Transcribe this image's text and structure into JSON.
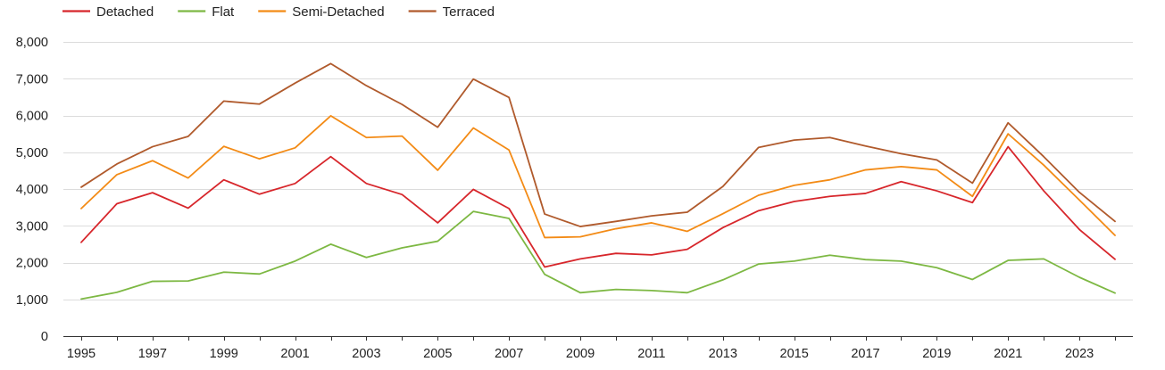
{
  "chart_data": {
    "type": "line",
    "title": "",
    "xlabel": "",
    "ylabel": "",
    "ylim": [
      0,
      8000
    ],
    "grid": true,
    "legend_position": "top-left",
    "x": [
      1995,
      1996,
      1997,
      1998,
      1999,
      2000,
      2001,
      2002,
      2003,
      2004,
      2005,
      2006,
      2007,
      2008,
      2009,
      2010,
      2011,
      2012,
      2013,
      2014,
      2015,
      2016,
      2017,
      2018,
      2019,
      2020,
      2021,
      2022,
      2023,
      2024
    ],
    "x_tick_labels": [
      "1995",
      "1997",
      "1999",
      "2001",
      "2003",
      "2005",
      "2007",
      "2009",
      "2011",
      "2013",
      "2015",
      "2017",
      "2019",
      "2021",
      "2023"
    ],
    "x_ticks": [
      1995,
      1997,
      1999,
      2001,
      2003,
      2005,
      2007,
      2009,
      2011,
      2013,
      2015,
      2017,
      2019,
      2021,
      2023
    ],
    "y_ticks": [
      0,
      1000,
      2000,
      3000,
      4000,
      5000,
      6000,
      7000,
      8000
    ],
    "y_tick_labels": [
      "0",
      "1,000",
      "2,000",
      "3,000",
      "4,000",
      "5,000",
      "6,000",
      "7,000",
      "8,000"
    ],
    "series": [
      {
        "name": "Detached",
        "color": "#d7262b",
        "values": [
          2550,
          3600,
          3900,
          3480,
          4250,
          3860,
          4150,
          4880,
          4150,
          3850,
          3080,
          3990,
          3470,
          1880,
          2100,
          2250,
          2210,
          2360,
          2950,
          3410,
          3660,
          3800,
          3880,
          4200,
          3950,
          3630,
          5150,
          3950,
          2900,
          2090
        ]
      },
      {
        "name": "Flat",
        "color": "#7db843",
        "values": [
          1010,
          1190,
          1490,
          1500,
          1740,
          1690,
          2040,
          2500,
          2140,
          2400,
          2580,
          3390,
          3200,
          1680,
          1180,
          1270,
          1240,
          1180,
          1530,
          1960,
          2040,
          2200,
          2080,
          2040,
          1860,
          1540,
          2060,
          2100,
          1600,
          1170
        ]
      },
      {
        "name": "Semi-Detached",
        "color": "#f38b16",
        "values": [
          3470,
          4390,
          4770,
          4300,
          5160,
          4820,
          5120,
          5990,
          5400,
          5440,
          4510,
          5660,
          5060,
          2680,
          2700,
          2920,
          3080,
          2850,
          3330,
          3830,
          4100,
          4250,
          4520,
          4610,
          4520,
          3800,
          5500,
          4650,
          3700,
          2740
        ]
      },
      {
        "name": "Terraced",
        "color": "#b05a2c",
        "values": [
          4050,
          4680,
          5150,
          5430,
          6390,
          6310,
          6880,
          7410,
          6810,
          6300,
          5680,
          6990,
          6490,
          3320,
          2980,
          3120,
          3270,
          3370,
          4070,
          5130,
          5330,
          5400,
          5170,
          4960,
          4790,
          4160,
          5800,
          4880,
          3910,
          3120
        ]
      }
    ]
  }
}
